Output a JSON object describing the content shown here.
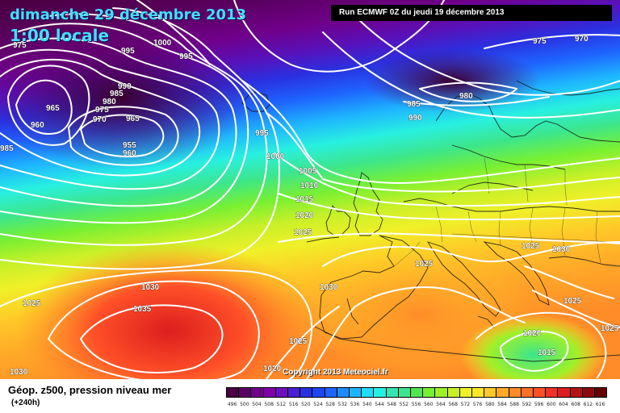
{
  "header": {
    "date_line": "dimanche 29 décembre 2013",
    "time_line": "1:00 locale",
    "run_info": "Run ECMWF 0Z du jeudi 19 décembre 2013"
  },
  "copyright": "Copyright 2013 Meteociel.fr",
  "footer": {
    "title": "Géop. z500, pression niveau mer",
    "lead": "(+240h)"
  },
  "legend": {
    "values": [
      "496",
      "500",
      "504",
      "508",
      "512",
      "516",
      "520",
      "524",
      "528",
      "532",
      "536",
      "540",
      "544",
      "548",
      "552",
      "556",
      "560",
      "564",
      "568",
      "572",
      "576",
      "580",
      "584",
      "588",
      "592",
      "596",
      "600",
      "604",
      "608",
      "612",
      "616"
    ],
    "colors": [
      "#4a0040",
      "#5a0060",
      "#70008a",
      "#8000a8",
      "#6a10c0",
      "#4a20d0",
      "#2a30e0",
      "#1e46f0",
      "#1e64ff",
      "#1e8cff",
      "#1eb4ff",
      "#1edcff",
      "#28f0e0",
      "#32e6b4",
      "#3ce68c",
      "#50e650",
      "#78f032",
      "#a0f028",
      "#c8f028",
      "#f0f028",
      "#ffe628",
      "#ffc828",
      "#ffaa28",
      "#ff8c28",
      "#ff6e28",
      "#ff5028",
      "#f03228",
      "#dc1e1e",
      "#b41414",
      "#8c0a0a",
      "#640000"
    ]
  },
  "isobars": [
    {
      "id": "975a",
      "label": "975"
    },
    {
      "id": "1000a",
      "label": "1000"
    },
    {
      "id": "995a",
      "label": "995"
    },
    {
      "id": "995b",
      "label": "995"
    },
    {
      "id": "990a",
      "label": "990"
    },
    {
      "id": "985a",
      "label": "985"
    },
    {
      "id": "980a",
      "label": "980"
    },
    {
      "id": "975b",
      "label": "975"
    },
    {
      "id": "970a",
      "label": "970"
    },
    {
      "id": "965a",
      "label": "965"
    },
    {
      "id": "965b",
      "label": "965"
    },
    {
      "id": "960a",
      "label": "960"
    },
    {
      "id": "955a",
      "label": "955"
    },
    {
      "id": "960b",
      "label": "960"
    },
    {
      "id": "985b",
      "label": "985"
    },
    {
      "id": "995c",
      "label": "995"
    },
    {
      "id": "1000b",
      "label": "1000"
    },
    {
      "id": "1005a",
      "label": "1005"
    },
    {
      "id": "1010a",
      "label": "1010"
    },
    {
      "id": "1015a",
      "label": "1015"
    },
    {
      "id": "1020a",
      "label": "1020"
    },
    {
      "id": "1025a",
      "label": "1025"
    },
    {
      "id": "975c",
      "label": "975"
    },
    {
      "id": "970b",
      "label": "970"
    },
    {
      "id": "985c",
      "label": "985"
    },
    {
      "id": "990b",
      "label": "990"
    },
    {
      "id": "980b",
      "label": "980"
    },
    {
      "id": "1025b",
      "label": "1025"
    },
    {
      "id": "1030a",
      "label": "1030"
    },
    {
      "id": "1025c",
      "label": "1025"
    },
    {
      "id": "1030b",
      "label": "1030"
    },
    {
      "id": "1035a",
      "label": "1035"
    },
    {
      "id": "1025d",
      "label": "1025"
    },
    {
      "id": "1030c",
      "label": "1030"
    },
    {
      "id": "1030d",
      "label": "1030"
    },
    {
      "id": "1025e",
      "label": "1025"
    },
    {
      "id": "1025f",
      "label": "1025"
    },
    {
      "id": "1020b",
      "label": "1020"
    },
    {
      "id": "1015b",
      "label": "1015"
    },
    {
      "id": "1025g",
      "label": "1025"
    },
    {
      "id": "1020c",
      "label": "1020"
    }
  ]
}
